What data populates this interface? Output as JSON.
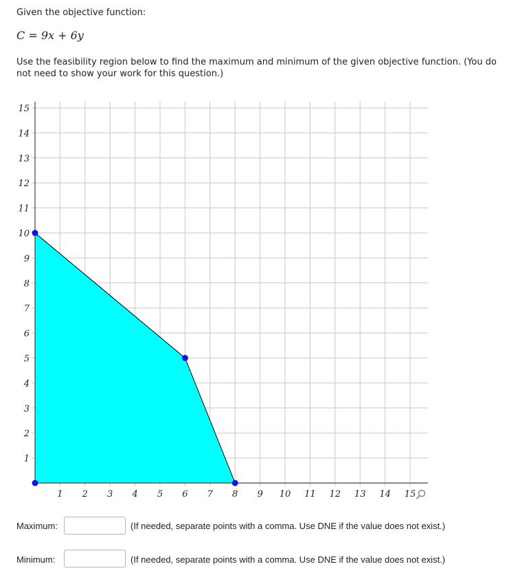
{
  "prompt_text": "Given the objective function:",
  "objective_function": "C = 9x + 6y",
  "instructions": "Use the feasibility region below to find the maximum and minimum of the given objective function. (You do not need to show your work for this question.)",
  "chart_data": {
    "type": "scatter",
    "xlim": [
      0,
      15
    ],
    "ylim": [
      0,
      15
    ],
    "grid": true,
    "x_ticks": [
      "1",
      "2",
      "3",
      "4",
      "5",
      "6",
      "7",
      "8",
      "9",
      "10",
      "11",
      "12",
      "13",
      "14",
      "15"
    ],
    "y_ticks": [
      "1",
      "2",
      "3",
      "4",
      "5",
      "6",
      "7",
      "8",
      "9",
      "10",
      "11",
      "12",
      "13",
      "14",
      "15"
    ],
    "feasible_region": [
      [
        0,
        0
      ],
      [
        0,
        10
      ],
      [
        6,
        5
      ],
      [
        8,
        0
      ]
    ],
    "points": [
      [
        0,
        0
      ],
      [
        0,
        10
      ],
      [
        6,
        5
      ],
      [
        8,
        0
      ]
    ],
    "region_color": "#00ffff",
    "point_color": "#0a14e6"
  },
  "maximum_label": "Maximum:",
  "maximum_value": "",
  "minimum_label": "Minimum:",
  "minimum_value": "",
  "hint_text": "(If needed, separate points with a comma. Use DNE if the value does not exist.)"
}
